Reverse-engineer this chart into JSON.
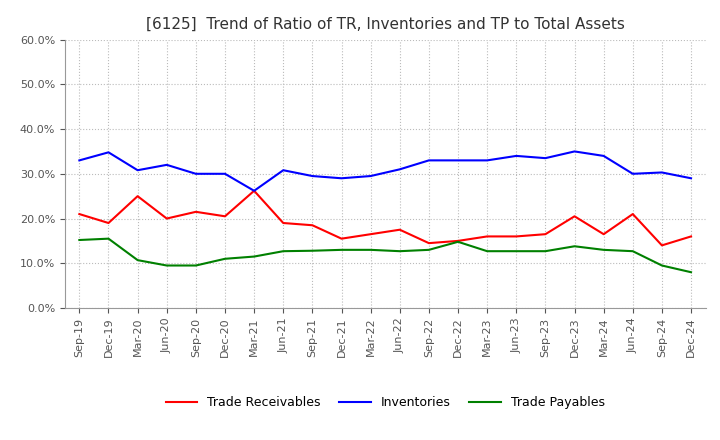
{
  "title": "[6125]  Trend of Ratio of TR, Inventories and TP to Total Assets",
  "x_labels": [
    "Sep-19",
    "Dec-19",
    "Mar-20",
    "Jun-20",
    "Sep-20",
    "Dec-20",
    "Mar-21",
    "Jun-21",
    "Sep-21",
    "Dec-21",
    "Mar-22",
    "Jun-22",
    "Sep-22",
    "Dec-22",
    "Mar-23",
    "Jun-23",
    "Sep-23",
    "Dec-23",
    "Mar-24",
    "Jun-24",
    "Sep-24",
    "Dec-24"
  ],
  "trade_receivables": [
    0.21,
    0.19,
    0.25,
    0.2,
    0.215,
    0.205,
    0.262,
    0.19,
    0.185,
    0.155,
    0.165,
    0.175,
    0.145,
    0.15,
    0.16,
    0.16,
    0.165,
    0.205,
    0.165,
    0.21,
    0.14,
    0.16
  ],
  "inventories": [
    0.33,
    0.348,
    0.308,
    0.32,
    0.3,
    0.3,
    0.262,
    0.308,
    0.295,
    0.29,
    0.295,
    0.31,
    0.33,
    0.33,
    0.33,
    0.34,
    0.335,
    0.35,
    0.34,
    0.3,
    0.303,
    0.29
  ],
  "trade_payables": [
    0.152,
    0.155,
    0.107,
    0.095,
    0.095,
    0.11,
    0.115,
    0.127,
    0.128,
    0.13,
    0.13,
    0.127,
    0.13,
    0.148,
    0.127,
    0.127,
    0.127,
    0.138,
    0.13,
    0.127,
    0.095,
    0.08
  ],
  "line_color_tr": "#FF0000",
  "line_color_inv": "#0000FF",
  "line_color_tp": "#008000",
  "ylim": [
    0.0,
    0.6
  ],
  "yticks": [
    0.0,
    0.1,
    0.2,
    0.3,
    0.4,
    0.5,
    0.6
  ],
  "background_color": "#FFFFFF",
  "grid_color": "#BBBBBB",
  "title_fontsize": 11,
  "tick_fontsize": 8,
  "legend_fontsize": 9
}
